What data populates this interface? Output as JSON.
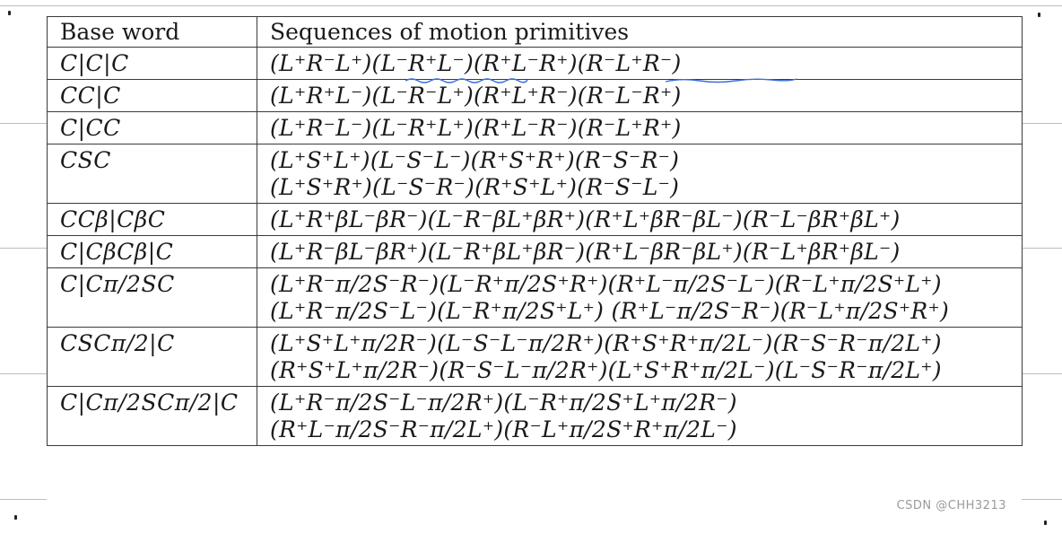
{
  "table": {
    "headers": {
      "base_word": "Base word",
      "sequences": "Sequences of motion primitives"
    },
    "rows": [
      {
        "base_word": "C|C|C",
        "sequences": [
          "(L⁺R⁻L⁺)(L⁻R⁺L⁻)(R⁺L⁻R⁺)(R⁻L⁺R⁻)"
        ]
      },
      {
        "base_word": "CC|C",
        "sequences": [
          "(L⁺R⁺L⁻)(L⁻R⁻L⁺)(R⁺L⁺R⁻)(R⁻L⁻R⁺)"
        ]
      },
      {
        "base_word": "C|CC",
        "sequences": [
          "(L⁺R⁻L⁻)(L⁻R⁺L⁺)(R⁺L⁻R⁻)(R⁻L⁺R⁺)"
        ]
      },
      {
        "base_word": "CSC",
        "sequences": [
          "(L⁺S⁺L⁺)(L⁻S⁻L⁻)(R⁺S⁺R⁺)(R⁻S⁻R⁻)",
          "(L⁺S⁺R⁺)(L⁻S⁻R⁻)(R⁺S⁺L⁺)(R⁻S⁻L⁻)"
        ]
      },
      {
        "base_word": "CCβ|CβC",
        "sequences": [
          "(L⁺R⁺βL⁻βR⁻)(L⁻R⁻βL⁺βR⁺)(R⁺L⁺βR⁻βL⁻)(R⁻L⁻βR⁺βL⁺)"
        ]
      },
      {
        "base_word": "C|CβCβ|C",
        "sequences": [
          "(L⁺R⁻βL⁻βR⁺)(L⁻R⁺βL⁺βR⁻)(R⁺L⁻βR⁻βL⁺)(R⁻L⁺βR⁺βL⁻)"
        ]
      },
      {
        "base_word": "C|Cπ/2SC",
        "sequences": [
          "(L⁺R⁻π/2S⁻R⁻)(L⁻R⁺π/2S⁺R⁺)(R⁺L⁻π/2S⁻L⁻)(R⁻L⁺π/2S⁺L⁺)",
          "(L⁺R⁻π/2S⁻L⁻)(L⁻R⁺π/2S⁺L⁺) (R⁺L⁻π/2S⁻R⁻)(R⁻L⁺π/2S⁺R⁺)"
        ]
      },
      {
        "base_word": "CSCπ/2|C",
        "sequences": [
          "(L⁺S⁺L⁺π/2R⁻)(L⁻S⁻L⁻π/2R⁺)(R⁺S⁺R⁺π/2L⁻)(R⁻S⁻R⁻π/2L⁺)",
          "(R⁺S⁺L⁺π/2R⁻)(R⁻S⁻L⁻π/2R⁺)(L⁺S⁺R⁺π/2L⁻)(L⁻S⁻R⁻π/2L⁺)"
        ]
      },
      {
        "base_word": "C|Cπ/2SCπ/2|C",
        "sequences": [
          "(L⁺R⁻π/2S⁻L⁻π/2R⁺)(L⁻R⁺π/2S⁺L⁺π/2R⁻)",
          "(R⁺L⁻π/2S⁻R⁻π/2L⁺)(R⁻L⁺π/2S⁺R⁺π/2L⁻)"
        ]
      }
    ]
  },
  "annotations": {
    "underline_color": "#3a6fd8"
  },
  "watermark": "CSDN @CHH3213"
}
